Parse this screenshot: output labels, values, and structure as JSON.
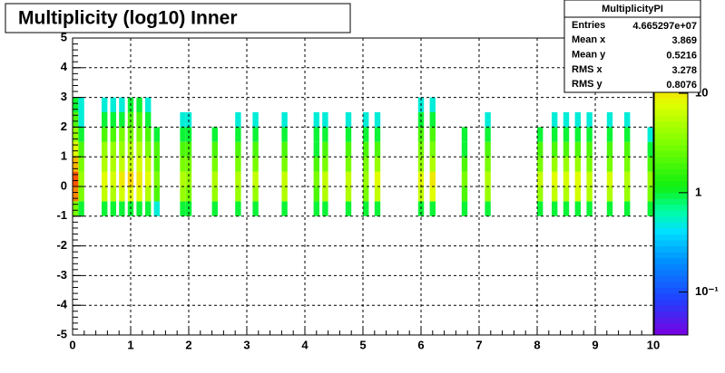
{
  "chart_data": {
    "type": "heatmap",
    "title": "Multiplicity (log10) Inner",
    "xlim": [
      0,
      10
    ],
    "xticks": [
      0,
      1,
      2,
      3,
      4,
      5,
      6,
      7,
      8,
      9,
      10
    ],
    "ylim": [
      -5,
      5
    ],
    "yticks": [
      -5,
      -4,
      -3,
      -2,
      -1,
      0,
      1,
      2,
      3,
      4,
      5
    ],
    "zlim": [
      0.037,
      36
    ],
    "zlog": true,
    "zticks": [
      {
        "value": 10,
        "label": "10"
      },
      1,
      {
        "value": 0.1,
        "label": "10⁻¹"
      }
    ],
    "grid": true,
    "ybins": [
      -1,
      -0.5,
      0,
      0.5,
      1,
      1.5,
      2,
      2.5,
      3
    ],
    "columns": [
      {
        "x": [
          0.0,
          0.1
        ],
        "z": [
          3,
          20,
          25,
          15,
          8,
          4,
          2,
          1
        ]
      },
      {
        "x": [
          0.1,
          0.2
        ],
        "z": [
          1,
          3,
          4,
          3,
          2,
          1,
          0.5,
          0.5
        ]
      },
      {
        "x": [
          0.5,
          0.6
        ],
        "z": [
          1,
          6,
          8,
          5,
          4,
          2,
          1,
          0.5
        ]
      },
      {
        "x": [
          0.65,
          0.75
        ],
        "z": [
          1,
          5,
          7,
          5,
          4,
          2,
          1,
          0.5
        ]
      },
      {
        "x": [
          0.8,
          0.9
        ],
        "z": [
          1,
          7,
          10,
          6,
          4,
          3,
          1,
          0.5
        ]
      },
      {
        "x": [
          0.95,
          1.05
        ],
        "z": [
          1,
          8,
          12,
          6,
          5,
          3,
          2,
          1
        ]
      },
      {
        "x": [
          1.1,
          1.2
        ],
        "z": [
          1,
          8,
          10,
          7,
          5,
          3,
          2,
          1
        ]
      },
      {
        "x": [
          1.25,
          1.35
        ],
        "z": [
          1,
          5,
          8,
          6,
          3,
          2,
          1,
          0.5
        ]
      },
      {
        "x": [
          1.4,
          1.5
        ],
        "z": [
          0.5,
          2,
          3,
          2,
          2,
          1,
          null,
          null
        ]
      },
      {
        "x": [
          1.85,
          1.95
        ],
        "z": [
          1,
          4,
          5,
          3,
          2,
          1,
          0.5,
          null
        ]
      },
      {
        "x": [
          1.95,
          2.05
        ],
        "z": [
          1,
          3,
          4,
          3,
          2,
          1,
          0.5,
          null
        ]
      },
      {
        "x": [
          2.4,
          2.5
        ],
        "z": [
          1,
          4,
          5,
          3,
          2,
          1,
          null,
          null
        ]
      },
      {
        "x": [
          2.8,
          2.9
        ],
        "z": [
          1,
          4,
          5,
          3,
          2,
          1,
          0.5,
          null
        ]
      },
      {
        "x": [
          3.1,
          3.2
        ],
        "z": [
          1,
          4,
          6,
          3,
          2,
          1,
          0.5,
          null
        ]
      },
      {
        "x": [
          3.6,
          3.7
        ],
        "z": [
          1,
          5,
          6,
          3,
          2,
          1,
          0.5,
          null
        ]
      },
      {
        "x": [
          4.15,
          4.25
        ],
        "z": [
          1,
          2,
          3,
          2,
          1,
          1,
          0.5,
          null
        ]
      },
      {
        "x": [
          4.3,
          4.4
        ],
        "z": [
          1,
          5,
          6,
          3,
          2,
          1,
          0.5,
          null
        ]
      },
      {
        "x": [
          4.7,
          4.8
        ],
        "z": [
          1,
          5,
          6,
          3,
          2,
          1,
          0.5,
          null
        ]
      },
      {
        "x": [
          5.0,
          5.1
        ],
        "z": [
          1,
          3,
          4,
          3,
          2,
          1,
          0.5,
          null
        ]
      },
      {
        "x": [
          5.2,
          5.3
        ],
        "z": [
          1,
          6,
          8,
          4,
          2,
          1,
          0.5,
          null
        ]
      },
      {
        "x": [
          5.95,
          6.05
        ],
        "z": [
          1,
          6,
          8,
          4,
          3,
          2,
          1,
          0.5
        ]
      },
      {
        "x": [
          6.15,
          6.25
        ],
        "z": [
          1,
          8,
          10,
          5,
          3,
          2,
          1,
          0.5
        ]
      },
      {
        "x": [
          6.7,
          6.8
        ],
        "z": [
          1,
          2,
          3,
          2,
          1,
          1,
          null,
          null
        ]
      },
      {
        "x": [
          7.1,
          7.2
        ],
        "z": [
          1,
          4,
          5,
          3,
          2,
          1,
          0.5,
          null
        ]
      },
      {
        "x": [
          8.0,
          8.1
        ],
        "z": [
          1,
          4,
          6,
          3,
          2,
          1,
          null,
          null
        ]
      },
      {
        "x": [
          8.25,
          8.35
        ],
        "z": [
          1,
          6,
          8,
          4,
          2,
          1,
          0.5,
          null
        ]
      },
      {
        "x": [
          8.45,
          8.55
        ],
        "z": [
          1,
          5,
          7,
          4,
          2,
          1,
          0.5,
          null
        ]
      },
      {
        "x": [
          8.65,
          8.75
        ],
        "z": [
          1,
          7,
          8,
          4,
          2,
          1,
          0.5,
          null
        ]
      },
      {
        "x": [
          8.85,
          8.95
        ],
        "z": [
          1,
          5,
          6,
          3,
          2,
          1,
          0.5,
          null
        ]
      },
      {
        "x": [
          9.2,
          9.3
        ],
        "z": [
          1,
          5,
          7,
          3,
          2,
          1,
          0.5,
          null
        ]
      },
      {
        "x": [
          9.5,
          9.6
        ],
        "z": [
          1,
          4,
          5,
          3,
          2,
          1,
          0.5,
          null
        ]
      },
      {
        "x": [
          9.9,
          10.0
        ],
        "z": [
          1,
          3,
          4,
          2,
          1,
          0.5,
          null,
          null
        ]
      }
    ],
    "stats": {
      "title": "MultiplicityPI",
      "rows": [
        [
          "Entries",
          "4.665297e+07"
        ],
        [
          "Mean x",
          "3.869"
        ],
        [
          "Mean y",
          "0.5216"
        ],
        [
          "RMS x",
          "3.278"
        ],
        [
          "RMS y",
          "0.8076"
        ]
      ]
    }
  }
}
